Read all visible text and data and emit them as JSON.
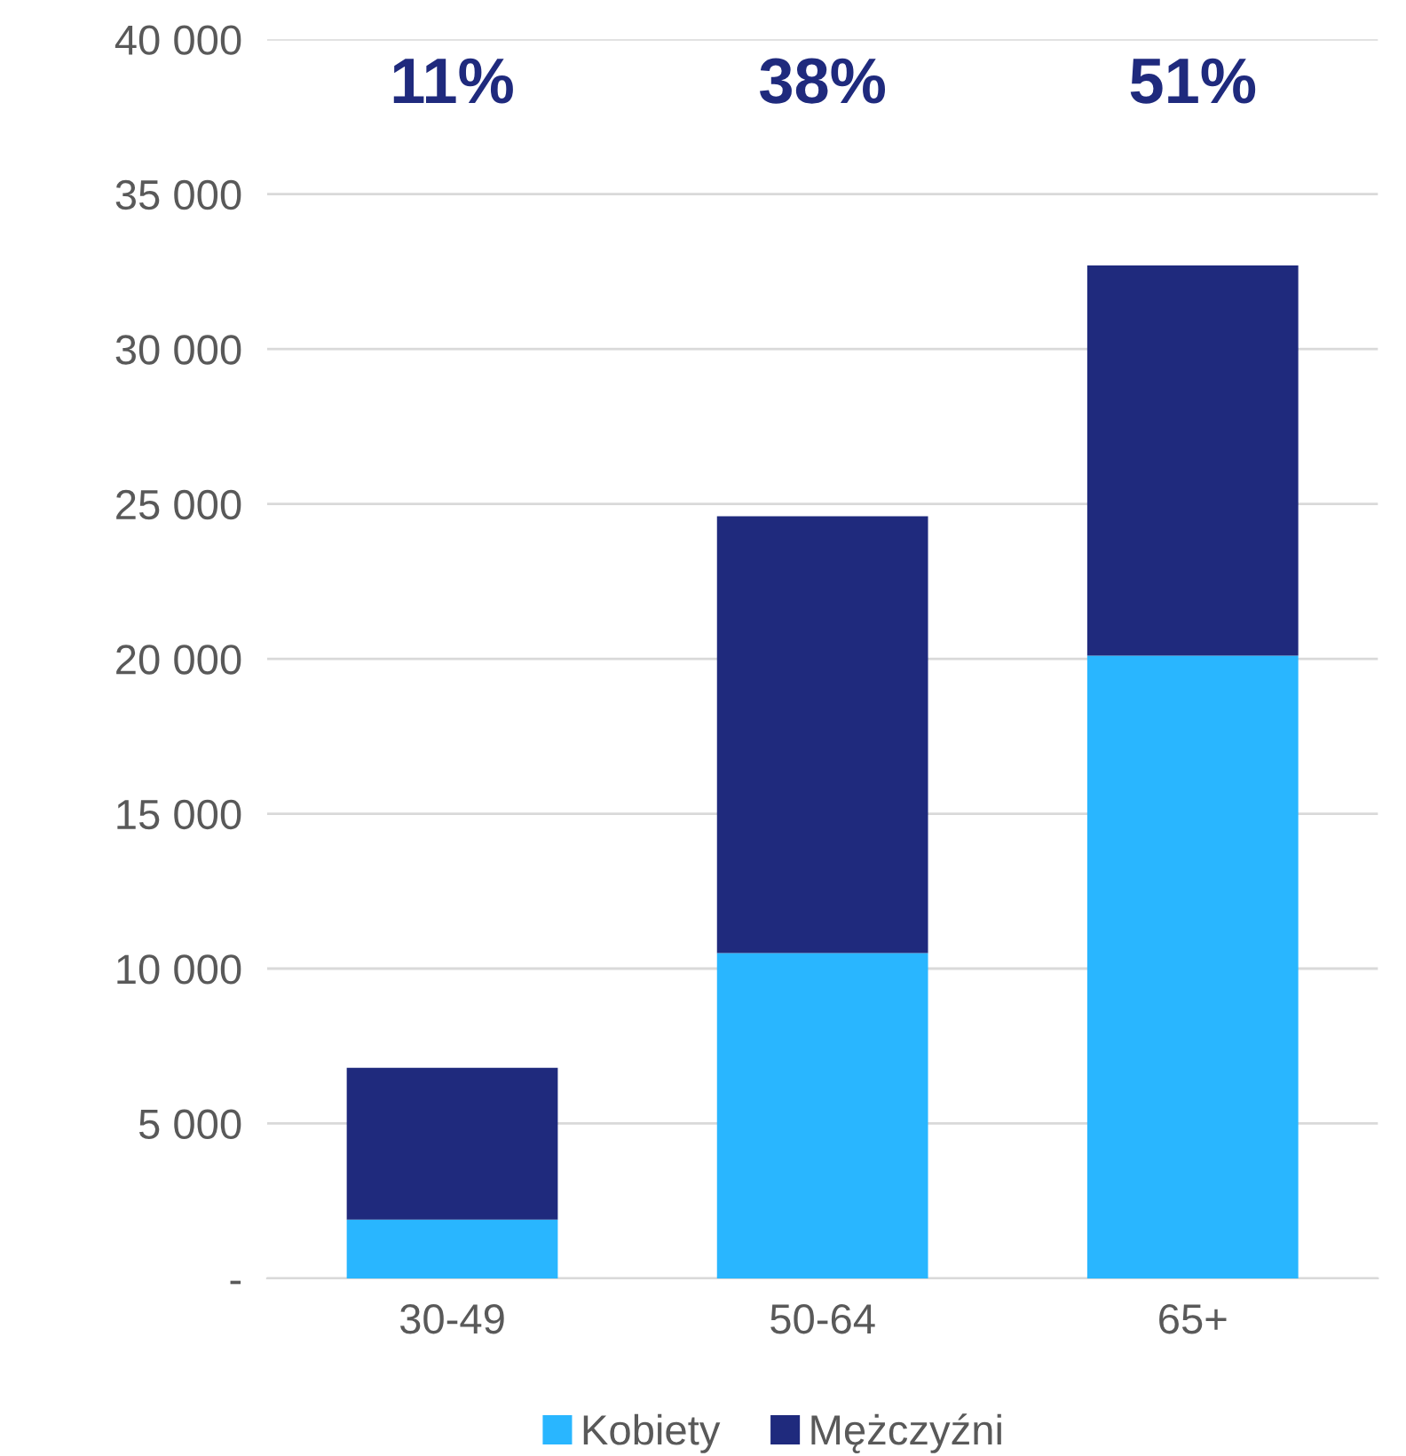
{
  "chart_data": {
    "type": "bar",
    "stacked": true,
    "categories": [
      "30-49",
      "50-64",
      "65+"
    ],
    "series": [
      {
        "name": "Kobiety",
        "color": "#29b6ff",
        "values": [
          1900,
          10500,
          20100
        ]
      },
      {
        "name": "Mężczyźni",
        "color": "#1f2a7d",
        "values": [
          4900,
          14100,
          12600
        ]
      }
    ],
    "ylim": [
      0,
      40000
    ],
    "yticks": [
      {
        "value": 0,
        "label": "-"
      },
      {
        "value": 5000,
        "label": "5 000"
      },
      {
        "value": 10000,
        "label": "10 000"
      },
      {
        "value": 15000,
        "label": "15 000"
      },
      {
        "value": 20000,
        "label": "20 000"
      },
      {
        "value": 25000,
        "label": "25 000"
      },
      {
        "value": 30000,
        "label": "30 000"
      },
      {
        "value": 35000,
        "label": "35 000"
      },
      {
        "value": 40000,
        "label": "40 000"
      }
    ],
    "grid": "y",
    "legend": "bottom",
    "annotations": [
      "11%",
      "38%",
      "51%"
    ]
  }
}
